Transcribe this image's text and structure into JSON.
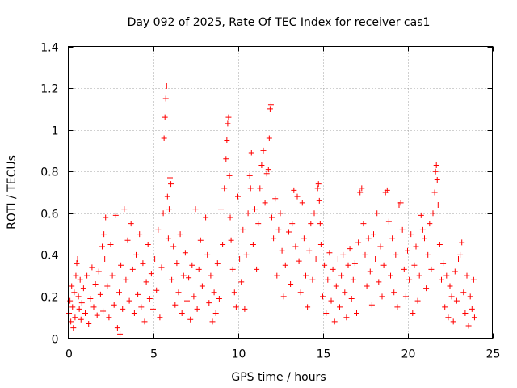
{
  "chart_data": {
    "type": "scatter",
    "title": "Day 092 of 2025, Rate Of TEC Index for receiver cas1",
    "xlabel": "GPS time / hours",
    "ylabel": "ROTI / TECUs",
    "xlim": [
      0,
      25
    ],
    "ylim": [
      0,
      1.4
    ],
    "xticks": [
      0,
      5,
      10,
      15,
      20,
      25
    ],
    "xtick_labels": [
      "0",
      "5",
      "10",
      "15",
      "20",
      "25"
    ],
    "yticks": [
      0,
      0.2,
      0.4,
      0.6,
      0.8,
      1,
      1.2,
      1.4
    ],
    "ytick_labels": [
      "0",
      "0.2",
      "0.4",
      "0.6",
      "0.8",
      "1",
      "1.2",
      "1.4"
    ],
    "grid": true,
    "marker": "plus",
    "color": "#ff0000",
    "series": [
      {
        "name": "ROTI",
        "points": [
          [
            0.05,
            0.12
          ],
          [
            0.1,
            0.18
          ],
          [
            0.15,
            0.08
          ],
          [
            0.2,
            0.25
          ],
          [
            0.25,
            0.15
          ],
          [
            0.3,
            0.05
          ],
          [
            0.35,
            0.22
          ],
          [
            0.4,
            0.1
          ],
          [
            0.45,
            0.3
          ],
          [
            0.5,
            0.36
          ],
          [
            0.55,
            0.38
          ],
          [
            0.6,
            0.2
          ],
          [
            0.65,
            0.14
          ],
          [
            0.7,
            0.28
          ],
          [
            0.75,
            0.09
          ],
          [
            0.8,
            0.17
          ],
          [
            0.9,
            0.24
          ],
          [
            1.0,
            0.12
          ],
          [
            1.1,
            0.3
          ],
          [
            1.2,
            0.07
          ],
          [
            1.3,
            0.19
          ],
          [
            1.4,
            0.34
          ],
          [
            1.5,
            0.15
          ],
          [
            1.6,
            0.26
          ],
          [
            1.7,
            0.11
          ],
          [
            1.8,
            0.32
          ],
          [
            1.9,
            0.21
          ],
          [
            2.0,
            0.44
          ],
          [
            2.05,
            0.13
          ],
          [
            2.1,
            0.5
          ],
          [
            2.15,
            0.38
          ],
          [
            2.2,
            0.58
          ],
          [
            2.3,
            0.25
          ],
          [
            2.4,
            0.1
          ],
          [
            2.5,
            0.45
          ],
          [
            2.6,
            0.3
          ],
          [
            2.7,
            0.16
          ],
          [
            2.8,
            0.59
          ],
          [
            2.9,
            0.05
          ],
          [
            3.0,
            0.22
          ],
          [
            3.05,
            0.02
          ],
          [
            3.1,
            0.35
          ],
          [
            3.2,
            0.14
          ],
          [
            3.3,
            0.62
          ],
          [
            3.4,
            0.28
          ],
          [
            3.5,
            0.47
          ],
          [
            3.6,
            0.18
          ],
          [
            3.7,
            0.55
          ],
          [
            3.8,
            0.33
          ],
          [
            3.9,
            0.12
          ],
          [
            4.0,
            0.4
          ],
          [
            4.1,
            0.21
          ],
          [
            4.2,
            0.5
          ],
          [
            4.3,
            0.15
          ],
          [
            4.4,
            0.36
          ],
          [
            4.5,
            0.08
          ],
          [
            4.6,
            0.27
          ],
          [
            4.7,
            0.45
          ],
          [
            4.8,
            0.19
          ],
          [
            4.9,
            0.31
          ],
          [
            5.0,
            0.14
          ],
          [
            5.1,
            0.38
          ],
          [
            5.2,
            0.23
          ],
          [
            5.3,
            0.52
          ],
          [
            5.4,
            0.1
          ],
          [
            5.5,
            0.34
          ],
          [
            5.6,
            0.6
          ],
          [
            5.65,
            0.96
          ],
          [
            5.7,
            1.06
          ],
          [
            5.75,
            1.15
          ],
          [
            5.8,
            1.21
          ],
          [
            5.85,
            0.68
          ],
          [
            5.9,
            0.48
          ],
          [
            5.95,
            0.62
          ],
          [
            6.0,
            0.77
          ],
          [
            6.05,
            0.74
          ],
          [
            6.1,
            0.28
          ],
          [
            6.2,
            0.44
          ],
          [
            6.3,
            0.16
          ],
          [
            6.4,
            0.36
          ],
          [
            6.5,
            0.22
          ],
          [
            6.6,
            0.5
          ],
          [
            6.7,
            0.12
          ],
          [
            6.8,
            0.3
          ],
          [
            6.9,
            0.41
          ],
          [
            7.0,
            0.18
          ],
          [
            7.1,
            0.29
          ],
          [
            7.2,
            0.09
          ],
          [
            7.3,
            0.35
          ],
          [
            7.4,
            0.2
          ],
          [
            7.5,
            0.62
          ],
          [
            7.6,
            0.14
          ],
          [
            7.7,
            0.33
          ],
          [
            7.8,
            0.47
          ],
          [
            7.9,
            0.25
          ],
          [
            8.0,
            0.64
          ],
          [
            8.1,
            0.58
          ],
          [
            8.2,
            0.4
          ],
          [
            8.3,
            0.17
          ],
          [
            8.4,
            0.3
          ],
          [
            8.5,
            0.08
          ],
          [
            8.6,
            0.22
          ],
          [
            8.7,
            0.12
          ],
          [
            8.8,
            0.36
          ],
          [
            8.9,
            0.19
          ],
          [
            9.0,
            0.62
          ],
          [
            9.1,
            0.45
          ],
          [
            9.2,
            0.72
          ],
          [
            9.3,
            0.86
          ],
          [
            9.35,
            0.95
          ],
          [
            9.4,
            1.03
          ],
          [
            9.45,
            1.06
          ],
          [
            9.5,
            0.78
          ],
          [
            9.55,
            0.58
          ],
          [
            9.6,
            0.47
          ],
          [
            9.7,
            0.33
          ],
          [
            9.8,
            0.22
          ],
          [
            9.9,
            0.15
          ],
          [
            10.0,
            0.68
          ],
          [
            10.1,
            0.38
          ],
          [
            10.2,
            0.27
          ],
          [
            10.3,
            0.52
          ],
          [
            10.4,
            0.14
          ],
          [
            10.5,
            0.4
          ],
          [
            10.6,
            0.6
          ],
          [
            10.7,
            0.78
          ],
          [
            10.75,
            0.72
          ],
          [
            10.8,
            0.89
          ],
          [
            10.9,
            0.45
          ],
          [
            11.0,
            0.62
          ],
          [
            11.1,
            0.33
          ],
          [
            11.2,
            0.55
          ],
          [
            11.3,
            0.72
          ],
          [
            11.4,
            0.83
          ],
          [
            11.5,
            0.9
          ],
          [
            11.6,
            0.65
          ],
          [
            11.7,
            0.79
          ],
          [
            11.8,
            0.81
          ],
          [
            11.85,
            0.96
          ],
          [
            11.9,
            1.1
          ],
          [
            11.95,
            1.12
          ],
          [
            12.0,
            0.58
          ],
          [
            12.1,
            0.48
          ],
          [
            12.2,
            0.67
          ],
          [
            12.3,
            0.3
          ],
          [
            12.4,
            0.52
          ],
          [
            12.5,
            0.6
          ],
          [
            12.6,
            0.42
          ],
          [
            12.7,
            0.2
          ],
          [
            12.8,
            0.35
          ],
          [
            13.0,
            0.51
          ],
          [
            13.1,
            0.26
          ],
          [
            13.2,
            0.55
          ],
          [
            13.3,
            0.71
          ],
          [
            13.4,
            0.44
          ],
          [
            13.5,
            0.68
          ],
          [
            13.6,
            0.37
          ],
          [
            13.7,
            0.22
          ],
          [
            13.8,
            0.65
          ],
          [
            13.9,
            0.48
          ],
          [
            14.0,
            0.3
          ],
          [
            14.1,
            0.15
          ],
          [
            14.2,
            0.42
          ],
          [
            14.3,
            0.55
          ],
          [
            14.4,
            0.28
          ],
          [
            14.5,
            0.6
          ],
          [
            14.6,
            0.38
          ],
          [
            14.7,
            0.72
          ],
          [
            14.75,
            0.74
          ],
          [
            14.8,
            0.66
          ],
          [
            14.85,
            0.55
          ],
          [
            14.9,
            0.45
          ],
          [
            15.0,
            0.2
          ],
          [
            15.1,
            0.35
          ],
          [
            15.2,
            0.12
          ],
          [
            15.3,
            0.28
          ],
          [
            15.4,
            0.41
          ],
          [
            15.5,
            0.18
          ],
          [
            15.6,
            0.33
          ],
          [
            15.7,
            0.08
          ],
          [
            15.8,
            0.25
          ],
          [
            15.9,
            0.38
          ],
          [
            16.0,
            0.15
          ],
          [
            16.1,
            0.3
          ],
          [
            16.2,
            0.4
          ],
          [
            16.3,
            0.22
          ],
          [
            16.4,
            0.1
          ],
          [
            16.5,
            0.35
          ],
          [
            16.6,
            0.43
          ],
          [
            16.7,
            0.19
          ],
          [
            16.8,
            0.28
          ],
          [
            16.9,
            0.36
          ],
          [
            17.0,
            0.12
          ],
          [
            17.1,
            0.46
          ],
          [
            17.2,
            0.7
          ],
          [
            17.3,
            0.72
          ],
          [
            17.4,
            0.55
          ],
          [
            17.5,
            0.4
          ],
          [
            17.6,
            0.25
          ],
          [
            17.7,
            0.48
          ],
          [
            17.8,
            0.32
          ],
          [
            17.9,
            0.16
          ],
          [
            18.0,
            0.5
          ],
          [
            18.1,
            0.38
          ],
          [
            18.2,
            0.6
          ],
          [
            18.3,
            0.27
          ],
          [
            18.4,
            0.44
          ],
          [
            18.5,
            0.2
          ],
          [
            18.6,
            0.35
          ],
          [
            18.7,
            0.7
          ],
          [
            18.8,
            0.71
          ],
          [
            18.9,
            0.56
          ],
          [
            19.0,
            0.3
          ],
          [
            19.1,
            0.48
          ],
          [
            19.2,
            0.22
          ],
          [
            19.3,
            0.4
          ],
          [
            19.4,
            0.15
          ],
          [
            19.5,
            0.64
          ],
          [
            19.6,
            0.65
          ],
          [
            19.7,
            0.52
          ],
          [
            19.8,
            0.33
          ],
          [
            19.9,
            0.2
          ],
          [
            20.0,
            0.42
          ],
          [
            20.1,
            0.28
          ],
          [
            20.2,
            0.5
          ],
          [
            20.3,
            0.12
          ],
          [
            20.4,
            0.35
          ],
          [
            20.5,
            0.44
          ],
          [
            20.6,
            0.18
          ],
          [
            20.7,
            0.3
          ],
          [
            20.8,
            0.59
          ],
          [
            20.9,
            0.52
          ],
          [
            21.0,
            0.48
          ],
          [
            21.1,
            0.24
          ],
          [
            21.2,
            0.4
          ],
          [
            21.3,
            0.55
          ],
          [
            21.4,
            0.33
          ],
          [
            21.5,
            0.6
          ],
          [
            21.6,
            0.7
          ],
          [
            21.65,
            0.8
          ],
          [
            21.7,
            0.83
          ],
          [
            21.75,
            0.76
          ],
          [
            21.8,
            0.64
          ],
          [
            21.9,
            0.45
          ],
          [
            22.0,
            0.28
          ],
          [
            22.1,
            0.36
          ],
          [
            22.2,
            0.15
          ],
          [
            22.3,
            0.3
          ],
          [
            22.4,
            0.1
          ],
          [
            22.5,
            0.25
          ],
          [
            22.6,
            0.2
          ],
          [
            22.7,
            0.08
          ],
          [
            22.8,
            0.32
          ],
          [
            22.9,
            0.18
          ],
          [
            23.0,
            0.38
          ],
          [
            23.1,
            0.4
          ],
          [
            23.2,
            0.46
          ],
          [
            23.3,
            0.22
          ],
          [
            23.4,
            0.12
          ],
          [
            23.5,
            0.3
          ],
          [
            23.6,
            0.06
          ],
          [
            23.7,
            0.2
          ],
          [
            23.8,
            0.14
          ],
          [
            23.9,
            0.28
          ],
          [
            23.95,
            0.1
          ]
        ]
      }
    ]
  }
}
